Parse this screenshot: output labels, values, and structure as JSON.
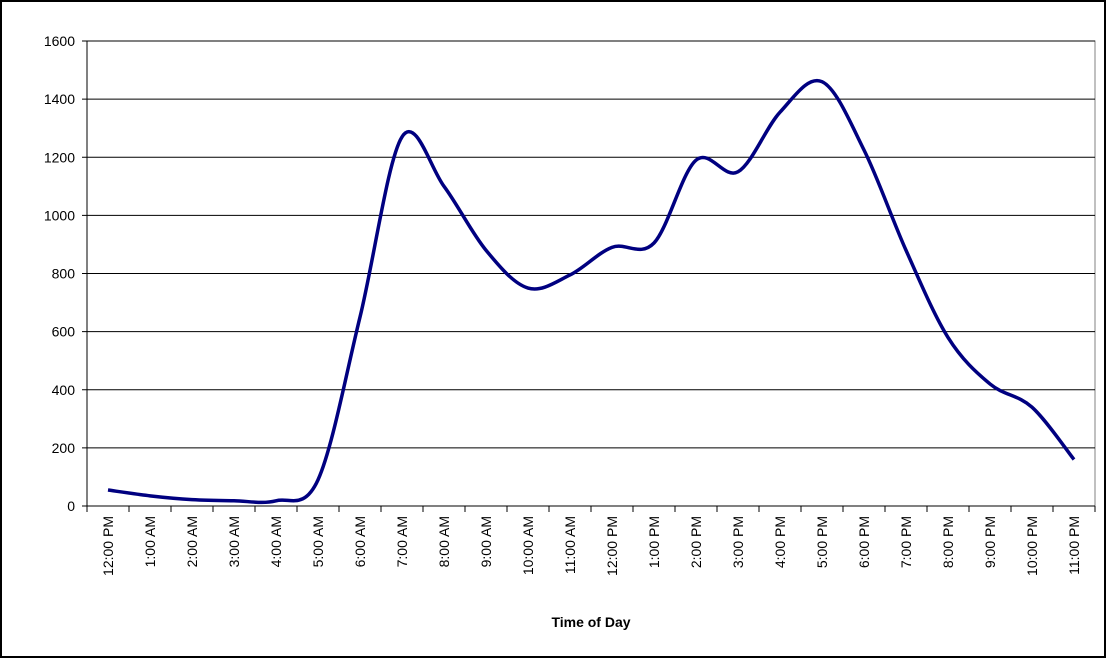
{
  "chart_data": {
    "type": "line",
    "x_label": "Time of Day",
    "categories": [
      "12:00 PM",
      "1:00 AM",
      "2:00 AM",
      "3:00 AM",
      "4:00 AM",
      "5:00 AM",
      "6:00 AM",
      "7:00 AM",
      "8:00 AM",
      "9:00 AM",
      "10:00 AM",
      "11:00 AM",
      "12:00 PM",
      "1:00 PM",
      "2:00 PM",
      "3:00 PM",
      "4:00 PM",
      "5:00 PM",
      "6:00 PM",
      "7:00 PM",
      "8:00 PM",
      "9:00 PM",
      "10:00 PM",
      "11:00 PM"
    ],
    "values": [
      55,
      35,
      22,
      18,
      18,
      90,
      650,
      1270,
      1100,
      880,
      750,
      795,
      890,
      905,
      1190,
      1150,
      1355,
      1460,
      1225,
      880,
      580,
      420,
      340,
      160
    ],
    "color": "#000080",
    "smooth": true,
    "ylim": [
      0,
      1600
    ],
    "yticks": [
      0,
      200,
      400,
      600,
      800,
      1000,
      1200,
      1400,
      1600
    ],
    "grid": true
  }
}
